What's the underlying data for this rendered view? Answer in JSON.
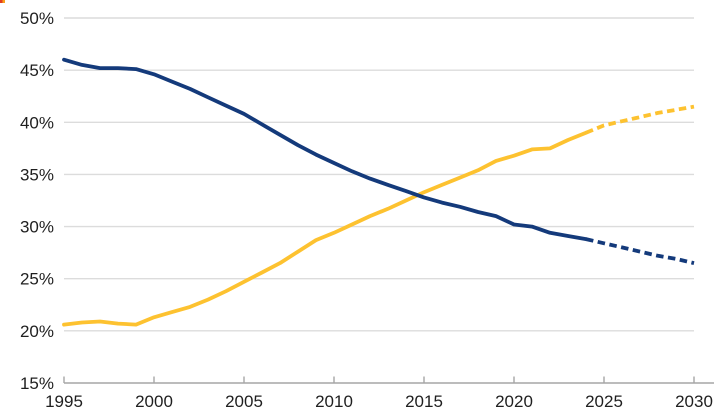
{
  "page": {
    "background": "#ffffff"
  },
  "corner_artifact": {
    "colors": [
      "#e03c23",
      "#f9a01b"
    ]
  },
  "chart_data": {
    "type": "line",
    "title": "",
    "legend": "none",
    "grid": {
      "horizontal": true,
      "vertical": false
    },
    "colors": {
      "gridline": "#dcdcdc",
      "axis": "#a6a6a6",
      "tick": "#a6a6a6",
      "label": "#1f1f1f"
    },
    "x_axis": {
      "range": [
        1995,
        2030
      ],
      "ticks": [
        {
          "label": "1995",
          "value": 1995
        },
        {
          "label": "2000",
          "value": 2000
        },
        {
          "label": "2005",
          "value": 2005
        },
        {
          "label": "2010",
          "value": 2010
        },
        {
          "label": "2015",
          "value": 2015
        },
        {
          "label": "2020",
          "value": 2020
        },
        {
          "label": "2025",
          "value": 2025
        },
        {
          "label": "2030",
          "value": 2030
        }
      ]
    },
    "y_axis": {
      "range": [
        15,
        50
      ],
      "unit": "%",
      "ticks": [
        {
          "label": "50%",
          "value": 50
        },
        {
          "label": "45%",
          "value": 45
        },
        {
          "label": "40%",
          "value": 40
        },
        {
          "label": "35%",
          "value": 35
        },
        {
          "label": "30%",
          "value": 30
        },
        {
          "label": "25%",
          "value": 25
        },
        {
          "label": "20%",
          "value": 20
        },
        {
          "label": "15%",
          "value": 15
        }
      ]
    },
    "projection_start_year": 2024,
    "years": [
      1995,
      1996,
      1997,
      1998,
      1999,
      2000,
      2001,
      2002,
      2003,
      2004,
      2005,
      2006,
      2007,
      2008,
      2009,
      2010,
      2011,
      2012,
      2013,
      2014,
      2015,
      2016,
      2017,
      2018,
      2019,
      2020,
      2021,
      2022,
      2023,
      2024,
      2025,
      2026,
      2027,
      2028,
      2029,
      2030
    ],
    "series": [
      {
        "id": "dark-blue-declining-line",
        "color": "#143a7b",
        "values": [
          46.0,
          45.5,
          45.2,
          45.2,
          45.1,
          44.6,
          43.9,
          43.2,
          42.4,
          41.6,
          40.8,
          39.8,
          38.8,
          37.8,
          36.9,
          36.1,
          35.3,
          34.6,
          34.0,
          33.4,
          32.8,
          32.3,
          31.9,
          31.4,
          31.0,
          30.2,
          30.0,
          29.4,
          29.1,
          28.8,
          28.4,
          28.0,
          27.6,
          27.2,
          26.9,
          26.5
        ]
      },
      {
        "id": "yellow-rising-line",
        "color": "#fdc230",
        "values": [
          20.6,
          20.8,
          20.9,
          20.7,
          20.6,
          21.3,
          21.8,
          22.3,
          23.0,
          23.8,
          24.7,
          25.6,
          26.5,
          27.6,
          28.7,
          29.4,
          30.2,
          31.0,
          31.7,
          32.5,
          33.3,
          34.0,
          34.7,
          35.4,
          36.3,
          36.8,
          37.4,
          37.5,
          38.3,
          39.0,
          39.7,
          40.1,
          40.5,
          40.9,
          41.2,
          41.5
        ]
      }
    ]
  }
}
